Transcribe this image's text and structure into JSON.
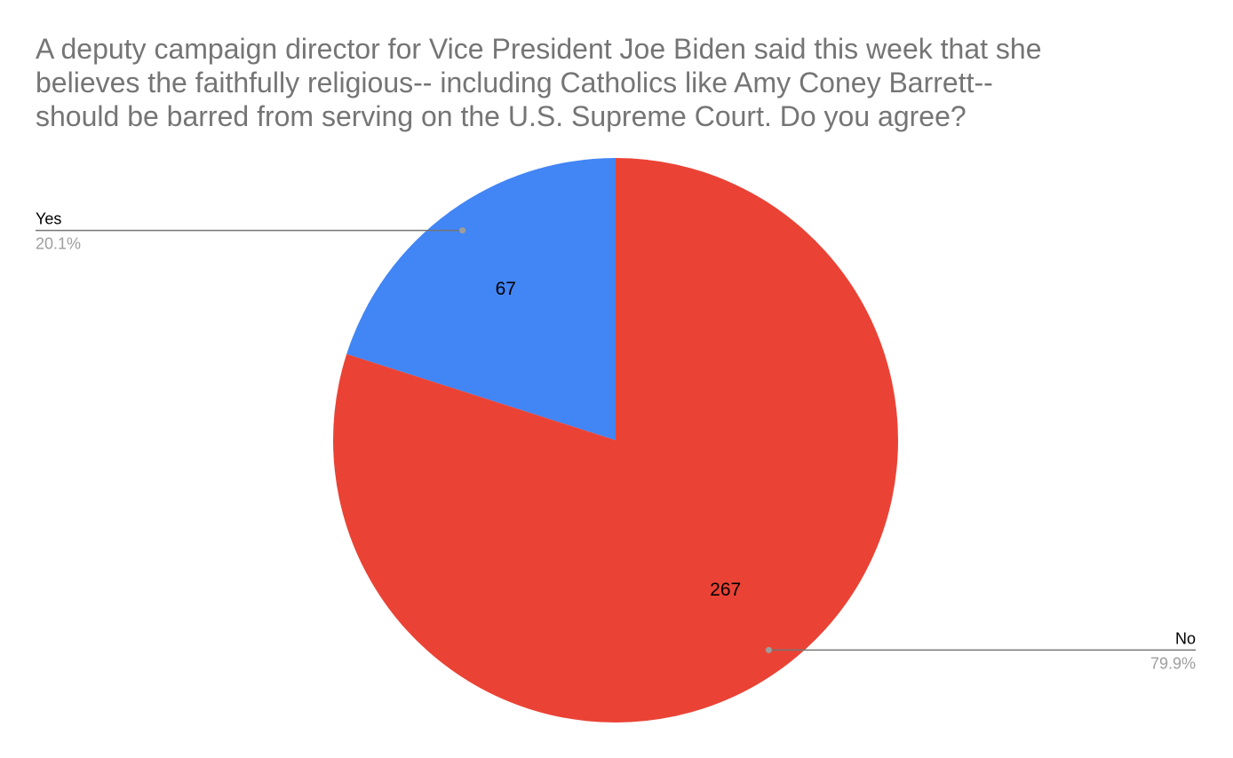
{
  "chart_data": {
    "type": "pie",
    "title_lines": [
      "A deputy campaign director for Vice President Joe Biden said this week that she",
      "believes the faithfully religious-- including Catholics like Amy Coney Barrett--",
      "should be barred from serving on the U.S. Supreme Court. Do you agree?"
    ],
    "slices": [
      {
        "label": "Yes",
        "value": 67,
        "percent": "20.1%",
        "color": "#4285f4"
      },
      {
        "label": "No",
        "value": 267,
        "percent": "79.9%",
        "color": "#ea4335"
      }
    ],
    "start_angle_deg": 0,
    "direction": "counterclockwise",
    "legend": "callouts"
  }
}
